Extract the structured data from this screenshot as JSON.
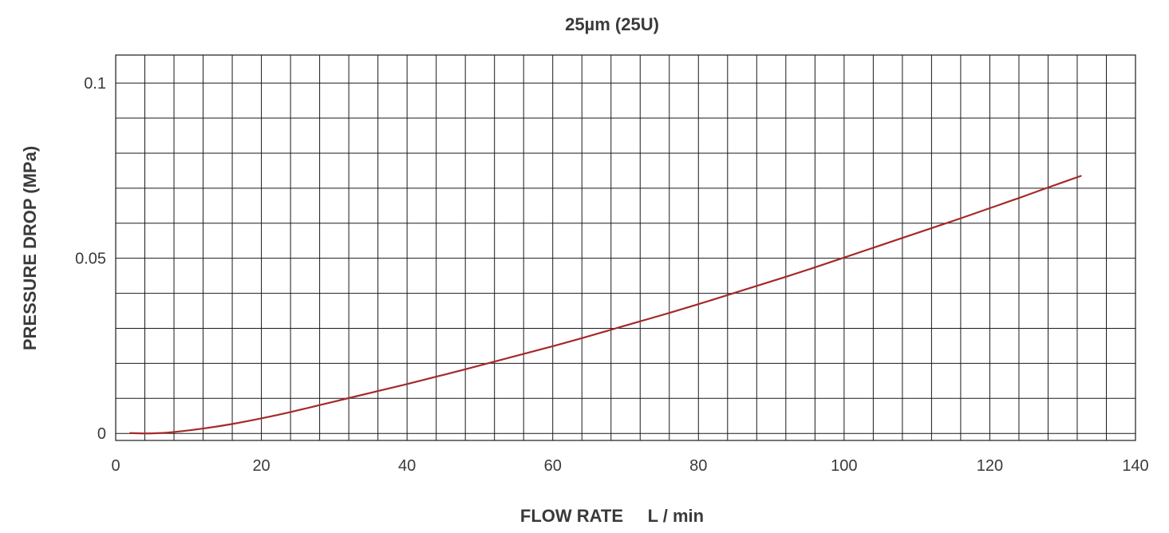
{
  "chart_data": {
    "type": "line",
    "title": "25µm (25U)",
    "xlabel": "FLOW RATE     L / min",
    "ylabel": "PRESSURE DROP (MPa)",
    "xlim": [
      0,
      140
    ],
    "ylim": [
      -0.002,
      0.108
    ],
    "x_ticks": [
      0,
      20,
      40,
      60,
      80,
      100,
      120,
      140
    ],
    "x_tick_labels": [
      "0",
      "20",
      "40",
      "60",
      "80",
      "100",
      "120",
      "140"
    ],
    "y_ticks": [
      0,
      0.05,
      0.1
    ],
    "y_tick_labels": [
      "0",
      "0.05",
      "0.1"
    ],
    "grid": true,
    "x_grid_step": 4,
    "y_grid_step": 0.01,
    "series": [
      {
        "color": "#a52a2a",
        "x": [
          2,
          4,
          6,
          8,
          12,
          16,
          20,
          24,
          28,
          32,
          36,
          40,
          44,
          48,
          52,
          56,
          60,
          64,
          68,
          72,
          76,
          80,
          84,
          88,
          92,
          96,
          100,
          104,
          108,
          112,
          116,
          120,
          124,
          128,
          132.5
        ],
        "y": [
          0.0001,
          0.0,
          0.0001,
          0.0004,
          0.0014,
          0.0027,
          0.0043,
          0.0061,
          0.0081,
          0.0101,
          0.0121,
          0.0141,
          0.0162,
          0.0183,
          0.0205,
          0.0227,
          0.0249,
          0.0272,
          0.0296,
          0.032,
          0.0344,
          0.0369,
          0.0395,
          0.0421,
          0.0447,
          0.0474,
          0.0502,
          0.053,
          0.0558,
          0.0586,
          0.0614,
          0.0643,
          0.0672,
          0.0702,
          0.0735
        ]
      }
    ]
  }
}
